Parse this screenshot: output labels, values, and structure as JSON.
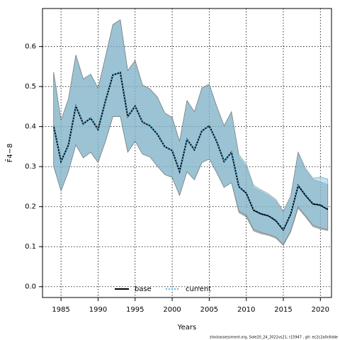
{
  "chart_data": {
    "type": "line",
    "xlabel": "Years",
    "ylabel": "F̄4−8",
    "footnote": "stockassessment.org, Sole20_24_2022vs21, r15947 , git: ec2c2a0c6dde",
    "x": [
      1984,
      1985,
      1986,
      1987,
      1988,
      1989,
      1990,
      1991,
      1992,
      1993,
      1994,
      1995,
      1996,
      1997,
      1998,
      1999,
      2000,
      2001,
      2002,
      2003,
      2004,
      2005,
      2006,
      2007,
      2008,
      2009,
      2010,
      2011,
      2012,
      2013,
      2014,
      2015,
      2016,
      2017,
      2018,
      2019,
      2020,
      2021
    ],
    "series": [
      {
        "name": "base",
        "color": "#000000",
        "band_color": "rgba(120,120,120,0.55)",
        "dash": false,
        "values": [
          0.402,
          0.313,
          0.354,
          0.451,
          0.407,
          0.421,
          0.393,
          0.464,
          0.529,
          0.535,
          0.425,
          0.451,
          0.411,
          0.402,
          0.381,
          0.35,
          0.34,
          0.288,
          0.368,
          0.342,
          0.389,
          0.402,
          0.363,
          0.313,
          0.336,
          0.25,
          0.234,
          0.191,
          0.182,
          0.177,
          0.165,
          0.142,
          0.182,
          0.253,
          0.228,
          0.207,
          0.204,
          0.193
        ],
        "upper": [
          0.536,
          0.416,
          0.469,
          0.579,
          0.519,
          0.531,
          0.496,
          0.575,
          0.655,
          0.667,
          0.54,
          0.565,
          0.504,
          0.494,
          0.474,
          0.434,
          0.423,
          0.363,
          0.465,
          0.437,
          0.496,
          0.506,
          0.451,
          0.402,
          0.437,
          0.325,
          0.3,
          0.248,
          0.238,
          0.228,
          0.214,
          0.186,
          0.224,
          0.336,
          0.292,
          0.268,
          0.262,
          0.255
        ],
        "lower": [
          0.301,
          0.239,
          0.288,
          0.354,
          0.322,
          0.336,
          0.31,
          0.363,
          0.425,
          0.425,
          0.336,
          0.363,
          0.331,
          0.324,
          0.301,
          0.28,
          0.273,
          0.228,
          0.287,
          0.267,
          0.31,
          0.319,
          0.285,
          0.248,
          0.26,
          0.185,
          0.174,
          0.139,
          0.132,
          0.128,
          0.121,
          0.103,
          0.137,
          0.196,
          0.174,
          0.15,
          0.144,
          0.14
        ]
      },
      {
        "name": "current",
        "color": "#5bb8ee",
        "band_color": "rgba(135,206,235,0.55)",
        "dash": true,
        "values": [
          0.402,
          0.313,
          0.354,
          0.451,
          0.407,
          0.421,
          0.393,
          0.464,
          0.529,
          0.535,
          0.425,
          0.451,
          0.411,
          0.402,
          0.381,
          0.35,
          0.34,
          0.288,
          0.368,
          0.342,
          0.389,
          0.402,
          0.363,
          0.313,
          0.336,
          0.25,
          0.236,
          0.193,
          0.184,
          0.179,
          0.167,
          0.144,
          0.184,
          0.255,
          0.23,
          0.209,
          0.206,
          0.195
        ],
        "upper": [
          0.536,
          0.416,
          0.469,
          0.579,
          0.519,
          0.531,
          0.496,
          0.575,
          0.655,
          0.667,
          0.54,
          0.565,
          0.504,
          0.494,
          0.474,
          0.434,
          0.423,
          0.363,
          0.465,
          0.437,
          0.496,
          0.506,
          0.451,
          0.402,
          0.437,
          0.331,
          0.306,
          0.253,
          0.242,
          0.232,
          0.218,
          0.189,
          0.228,
          0.336,
          0.296,
          0.271,
          0.274,
          0.269
        ],
        "lower": [
          0.301,
          0.239,
          0.288,
          0.354,
          0.322,
          0.336,
          0.31,
          0.363,
          0.425,
          0.425,
          0.336,
          0.363,
          0.331,
          0.324,
          0.301,
          0.28,
          0.273,
          0.228,
          0.287,
          0.267,
          0.31,
          0.319,
          0.285,
          0.248,
          0.26,
          0.189,
          0.179,
          0.143,
          0.136,
          0.131,
          0.124,
          0.106,
          0.14,
          0.2,
          0.177,
          0.154,
          0.147,
          0.143
        ]
      }
    ],
    "xlim": [
      1982.5,
      2021.5
    ],
    "ylim": [
      -0.027,
      0.695
    ],
    "xticks": [
      1985,
      1990,
      1995,
      2000,
      2005,
      2010,
      2015,
      2020
    ],
    "yticks": [
      {
        "value": 0,
        "label": "0.0"
      },
      0.1,
      0.2,
      0.3,
      0.4,
      0.5,
      0.6
    ],
    "grid": true,
    "legend": "bottom"
  }
}
